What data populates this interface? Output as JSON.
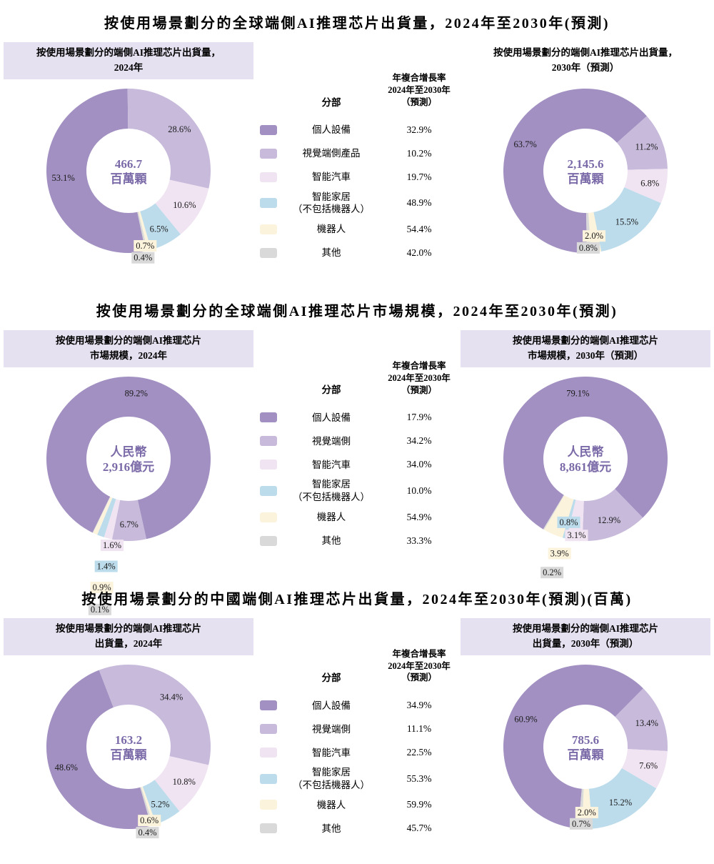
{
  "colors": {
    "personal": "#a190c1",
    "vision": "#c7badb",
    "vehicle": "#f0e3f2",
    "home": "#bcdcec",
    "robot": "#fcf3dc",
    "other": "#d9d9d9",
    "header_bg": "#e6e1f0",
    "center_text": "#7b6aa8"
  },
  "color_keys": [
    "personal",
    "vision",
    "vehicle",
    "home",
    "robot",
    "other"
  ],
  "sections": [
    {
      "title": "按使用場景劃分的全球端側AI推理芯片出貨量，2024年至2030年(預測)",
      "left_chart": {
        "header_line1": "按使用場景劃分的端側AI推理芯片出貨量，",
        "header_line2": "2024年",
        "header_shaded": true
      },
      "right_chart": {
        "header_line1": "按使用場景劃分的端側AI推理芯片出貨量，",
        "header_line2": "2030年（預測）",
        "header_shaded": false
      },
      "legend": {
        "col_segment": "分部",
        "cagr_lines": [
          "年複合增長率",
          "2024年至2030年（預測）"
        ],
        "items": [
          {
            "label": "個人設備",
            "cagr": "32.9%"
          },
          {
            "label": "視覺端側產品",
            "cagr": "10.2%"
          },
          {
            "label": "智能汽車",
            "cagr": "19.7%"
          },
          {
            "label": "智能家居",
            "label_line2": "（不包括機器人）",
            "cagr": "48.9%"
          },
          {
            "label": "機器人",
            "cagr": "54.4%"
          },
          {
            "label": "其他",
            "cagr": "42.0%"
          }
        ]
      }
    },
    {
      "title": "按使用場景劃分的全球端側AI推理芯片市場規模，2024年至2030年(預測)",
      "left_chart": {
        "header_line1": "按使用場景劃分的端側AI推理芯片",
        "header_line2": "市場規模，2024年",
        "header_shaded": true
      },
      "right_chart": {
        "header_line1": "按使用場景劃分的端側AI推理芯片",
        "header_line2": "市場規模，2030年（預測）",
        "header_shaded": true
      },
      "legend": {
        "col_segment": "分部",
        "cagr_lines": [
          "年複合增長率",
          "2024年至2030年",
          "（預測）"
        ],
        "items": [
          {
            "label": "個人設備",
            "cagr": "17.9%"
          },
          {
            "label": "視覺端側",
            "cagr": "34.2%"
          },
          {
            "label": "智能汽車",
            "cagr": "34.0%"
          },
          {
            "label": "智能家居",
            "label_line2": "（不包括機器人）",
            "cagr": "10.0%"
          },
          {
            "label": "機器人",
            "cagr": "54.9%"
          },
          {
            "label": "其他",
            "cagr": "33.3%"
          }
        ]
      }
    },
    {
      "title": "按使用場景劃分的中國端側AI推理芯片出貨量，2024年至2030年(預測)(百萬)",
      "left_chart": {
        "header_line1": "按使用場景劃分的端側AI推理芯片",
        "header_line2": "出貨量，2024年",
        "header_shaded": true
      },
      "right_chart": {
        "header_line1": "按使用場景劃分的端側AI推理芯片",
        "header_line2": "出貨量，2030年（預測）",
        "header_shaded": true
      },
      "legend": {
        "col_segment": "分部",
        "cagr_lines": [
          "年複合增長率",
          "2024年至2030年",
          "（預測）"
        ],
        "items": [
          {
            "label": "個人設備",
            "cagr": "34.9%"
          },
          {
            "label": "視覺端側",
            "cagr": "11.1%"
          },
          {
            "label": "智能汽車",
            "cagr": "22.5%"
          },
          {
            "label": "智能家居",
            "label_line2": "（不包括機器人）",
            "cagr": "55.3%"
          },
          {
            "label": "機器人",
            "cagr": "59.9%"
          },
          {
            "label": "其他",
            "cagr": "45.7%"
          }
        ]
      }
    }
  ],
  "chart_data": [
    {
      "type": "pie",
      "donut": true,
      "id": "s1-2024",
      "title": "按使用場景劃分的端側AI推理芯片出貨量，2024年",
      "center_line1": "466.7",
      "center_line2": "百萬顆",
      "unit": "share %",
      "categories": [
        "個人設備",
        "視覺端側產品",
        "智能汽車",
        "智能家居（不包括機器人）",
        "機器人",
        "其他"
      ],
      "values": [
        53.1,
        28.6,
        10.6,
        6.5,
        0.7,
        0.4
      ],
      "start_angle_deg": 168
    },
    {
      "type": "pie",
      "donut": true,
      "id": "s1-2030",
      "title": "按使用場景劃分的端側AI推理芯片出貨量，2030年（預測）",
      "center_line1": "2,145.6",
      "center_line2": "百萬顆",
      "unit": "share %",
      "categories": [
        "個人設備",
        "視覺端側產品",
        "智能汽車",
        "智能家居（不包括機器人）",
        "機器人",
        "其他"
      ],
      "values": [
        63.7,
        11.2,
        6.8,
        15.5,
        2.0,
        0.8
      ],
      "start_angle_deg": 179
    },
    {
      "type": "pie",
      "donut": true,
      "id": "s2-2024",
      "title": "按使用場景劃分的端側AI推理芯片市場規模，2024年",
      "center_line1": "人民幣",
      "center_line2": "2,916億元",
      "unit": "share %",
      "categories": [
        "個人設備",
        "視覺端側",
        "智能汽車",
        "智能家居（不包括機器人）",
        "機器人",
        "其他"
      ],
      "values": [
        89.2,
        6.7,
        1.6,
        1.4,
        0.9,
        0.1
      ],
      "start_angle_deg": 206
    },
    {
      "type": "pie",
      "donut": true,
      "id": "s2-2030",
      "title": "按使用場景劃分的端側AI推理芯片市場規模，2030年（預測）",
      "center_line1": "人民幣",
      "center_line2": "8,861億元",
      "unit": "share %",
      "categories": [
        "個人設備",
        "視覺端側",
        "智能汽車",
        "智能家居（不包括機器人）",
        "機器人",
        "其他"
      ],
      "values": [
        79.1,
        12.9,
        3.1,
        0.8,
        3.9,
        0.2
      ],
      "start_angle_deg": 211
    },
    {
      "type": "pie",
      "donut": true,
      "id": "s3-2024",
      "title": "按使用場景劃分的端側AI推理芯片出貨量，2024年",
      "center_line1": "163.2",
      "center_line2": "百萬顆",
      "unit": "share %",
      "categories": [
        "個人設備",
        "視覺端側",
        "智能汽車",
        "智能家居（不包括機器人）",
        "機器人",
        "其他"
      ],
      "values": [
        48.6,
        34.4,
        10.8,
        5.2,
        0.6,
        0.4
      ],
      "start_angle_deg": 164
    },
    {
      "type": "pie",
      "donut": true,
      "id": "s3-2030",
      "title": "按使用場景劃分的端側AI推理芯片出貨量，2030年（預測）",
      "center_line1": "785.6",
      "center_line2": "百萬顆",
      "unit": "share %",
      "categories": [
        "個人設備",
        "視覺端側",
        "智能汽車",
        "智能家居（不包括機器人）",
        "機器人",
        "其他"
      ],
      "values": [
        60.9,
        13.4,
        7.6,
        15.2,
        2.0,
        0.7
      ],
      "start_angle_deg": 185
    }
  ]
}
